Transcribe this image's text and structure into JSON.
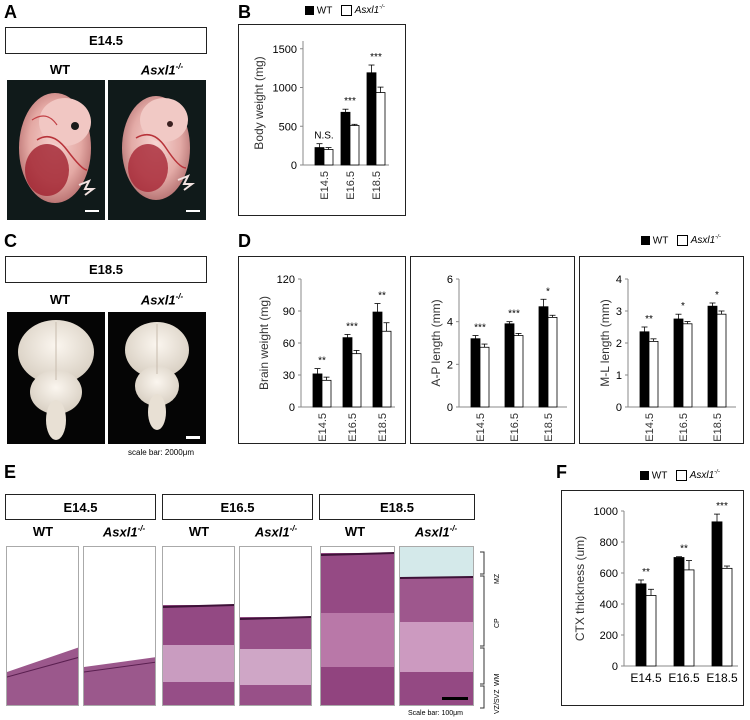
{
  "panels": {
    "a": "A",
    "b": "B",
    "c": "C",
    "d": "D",
    "e": "E",
    "f": "F"
  },
  "panel_a": {
    "stage": "E14.5",
    "wt_label": "WT",
    "ko_label_base": "Asxl1",
    "ko_label_sup": "-/-"
  },
  "panel_c": {
    "stage": "E18.5",
    "wt_label": "WT",
    "ko_label_base": "Asxl1",
    "ko_label_sup": "-/-",
    "scale_note": "scale bar: 2000μm"
  },
  "legend": {
    "wt": "WT",
    "ko_base": "Asxl1",
    "ko_sup": "-/-"
  },
  "panel_e": {
    "stages": [
      "E14.5",
      "E16.5",
      "E18.5"
    ],
    "wt_label": "WT",
    "ko_label_base": "Asxl1",
    "ko_label_sup": "-/-",
    "layers": [
      "MZ",
      "CP",
      "WM",
      "VZ/SVZ"
    ],
    "scale_note": "Scale bar: 100μm"
  },
  "chart_data": [
    {
      "id": "B",
      "type": "bar",
      "ylabel": "Body weight (mg)",
      "categories": [
        "E14.5",
        "E16.5",
        "E18.5"
      ],
      "yticks": [
        0,
        500,
        1000,
        1500
      ],
      "ylim": [
        0,
        1600
      ],
      "series": [
        {
          "name": "WT",
          "values": [
            225,
            680,
            1190
          ],
          "errors": [
            50,
            40,
            100
          ]
        },
        {
          "name": "Asxl1-/-",
          "values": [
            200,
            510,
            935
          ],
          "errors": [
            25,
            15,
            70
          ]
        }
      ],
      "annotations": [
        "N.S.",
        "***",
        "***"
      ]
    },
    {
      "id": "D1",
      "type": "bar",
      "ylabel": "Brain weight (mg)",
      "categories": [
        "E14.5",
        "E16.5",
        "E18.5"
      ],
      "yticks": [
        0,
        30,
        60,
        90,
        120
      ],
      "ylim": [
        0,
        120
      ],
      "series": [
        {
          "name": "WT",
          "values": [
            31,
            65,
            89
          ],
          "errors": [
            5,
            3,
            8
          ]
        },
        {
          "name": "Asxl1-/-",
          "values": [
            25,
            50,
            71
          ],
          "errors": [
            3,
            3,
            8
          ]
        }
      ],
      "annotations": [
        "**",
        "***",
        "**"
      ]
    },
    {
      "id": "D2",
      "type": "bar",
      "ylabel": "A-P length (mm)",
      "categories": [
        "E14.5",
        "E16.5",
        "E18.5"
      ],
      "yticks": [
        0,
        2,
        4,
        6
      ],
      "ylim": [
        0,
        6
      ],
      "series": [
        {
          "name": "WT",
          "values": [
            3.2,
            3.9,
            4.7
          ],
          "errors": [
            0.15,
            0.1,
            0.35
          ]
        },
        {
          "name": "Asxl1-/-",
          "values": [
            2.8,
            3.35,
            4.2
          ],
          "errors": [
            0.15,
            0.1,
            0.1
          ]
        }
      ],
      "annotations": [
        "***",
        "***",
        "*"
      ]
    },
    {
      "id": "D3",
      "type": "bar",
      "ylabel": "M-L length (mm)",
      "categories": [
        "E14.5",
        "E16.5",
        "E18.5"
      ],
      "yticks": [
        0,
        1,
        2,
        3,
        4
      ],
      "ylim": [
        0,
        4
      ],
      "series": [
        {
          "name": "WT",
          "values": [
            2.35,
            2.75,
            3.15
          ],
          "errors": [
            0.15,
            0.15,
            0.1
          ]
        },
        {
          "name": "Asxl1-/-",
          "values": [
            2.05,
            2.6,
            2.9
          ],
          "errors": [
            0.08,
            0.07,
            0.1
          ]
        }
      ],
      "annotations": [
        "**",
        "*",
        "*"
      ]
    },
    {
      "id": "F",
      "type": "bar",
      "ylabel": "CTX thickness (um)",
      "categories": [
        "E14.5",
        "E16.5",
        "E18.5"
      ],
      "yticks": [
        0,
        200,
        400,
        600,
        800,
        1000
      ],
      "ylim": [
        0,
        1000
      ],
      "series": [
        {
          "name": "WT",
          "values": [
            530,
            700,
            930
          ],
          "errors": [
            25,
            5,
            50
          ]
        },
        {
          "name": "Asxl1-/-",
          "values": [
            455,
            620,
            630
          ],
          "errors": [
            40,
            60,
            15
          ]
        }
      ],
      "annotations": [
        "**",
        "**",
        "***"
      ]
    }
  ],
  "colors": {
    "wt": "#000000",
    "ko": "#ffffff",
    "stain": "#8a3b78"
  }
}
